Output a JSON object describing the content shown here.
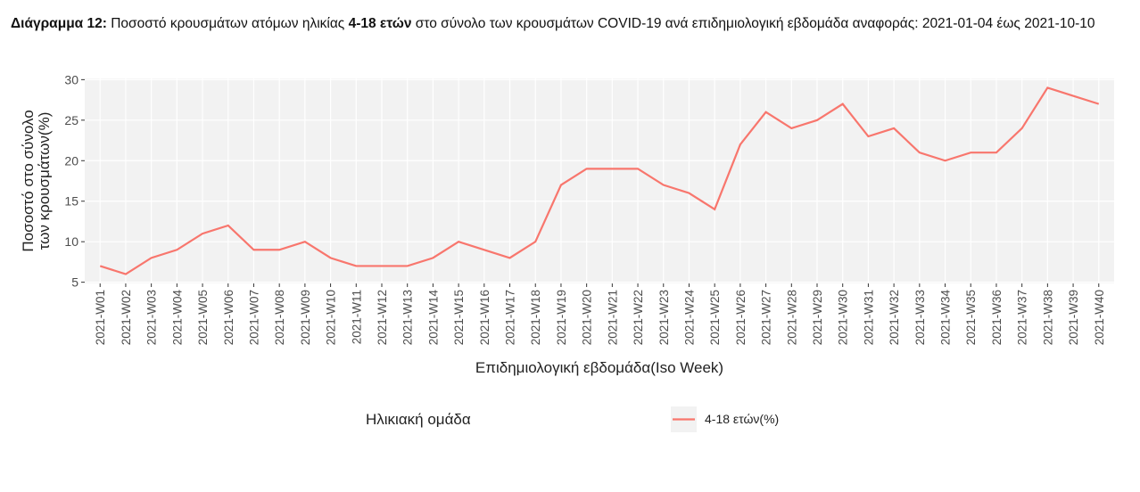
{
  "caption": [
    {
      "text": "Διάγραμμα 12:",
      "bold": true
    },
    {
      "text": " Ποσοστό κρουσμάτων ατόμων ηλικίας ",
      "bold": false
    },
    {
      "text": "4-18 ετών",
      "bold": true
    },
    {
      "text": " στο σύνολο των κρουσμάτων COVID-19 ανά επιδημιολογική εβδομάδα αναφοράς: 2021-01-04 έως 2021-10-10",
      "bold": false
    }
  ],
  "chart_data": {
    "type": "line",
    "xlabel": "Επιδημιολογική εβδομάδα(Iso Week)",
    "ylabel": [
      "Ποσοστό στο σύνολο",
      "των κρουσμάτων(%)"
    ],
    "categories": [
      "2021-W01",
      "2021-W02",
      "2021-W03",
      "2021-W04",
      "2021-W05",
      "2021-W06",
      "2021-W07",
      "2021-W08",
      "2021-W09",
      "2021-W10",
      "2021-W11",
      "2021-W12",
      "2021-W13",
      "2021-W14",
      "2021-W15",
      "2021-W16",
      "2021-W17",
      "2021-W18",
      "2021-W19",
      "2021-W20",
      "2021-W21",
      "2021-W22",
      "2021-W23",
      "2021-W24",
      "2021-W25",
      "2021-W26",
      "2021-W27",
      "2021-W28",
      "2021-W29",
      "2021-W30",
      "2021-W31",
      "2021-W32",
      "2021-W33",
      "2021-W34",
      "2021-W35",
      "2021-W36",
      "2021-W37",
      "2021-W38",
      "2021-W39",
      "2021-W40"
    ],
    "series": [
      {
        "name": "4-18 ετών(%)",
        "color": "#F8766D",
        "values": [
          7,
          6,
          8,
          9,
          11,
          12,
          9,
          9,
          10,
          8,
          7,
          7,
          7,
          8,
          10,
          9,
          8,
          10,
          17,
          19,
          19,
          19,
          17,
          16,
          14,
          22,
          26,
          24,
          25,
          27,
          23,
          24,
          21,
          20,
          21,
          21,
          24,
          29,
          28,
          27
        ]
      }
    ],
    "legend_title": "Ηλικιακή ομάδα",
    "ylim": [
      4.85,
      30.15
    ],
    "yticks": [
      5,
      10,
      15,
      20,
      25,
      30
    ],
    "grid": true
  }
}
